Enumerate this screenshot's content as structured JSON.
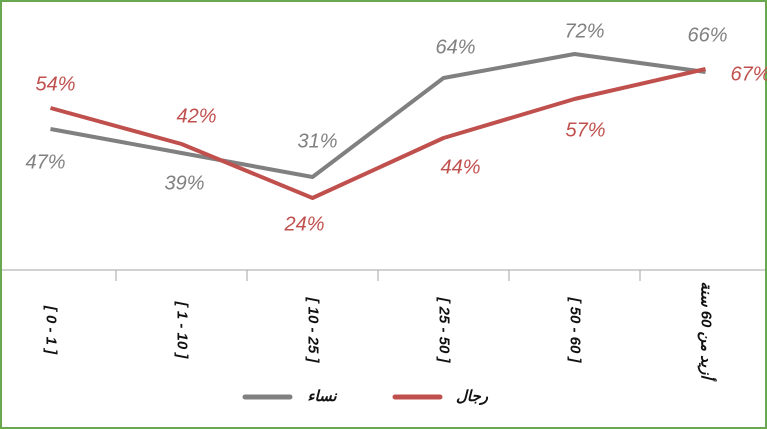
{
  "chart_data": {
    "type": "line",
    "categories": [
      "[ 0 - 1 ]",
      "[ 1 - 10 ]",
      "[ 10 - 25 ]",
      "[ 25 - 50 ]",
      "[ 50 - 60 ]",
      "أزيد من 60 سنة"
    ],
    "series": [
      {
        "name": "نساء",
        "color": "#808080",
        "values": [
          47,
          39,
          31,
          64,
          72,
          66
        ],
        "value_labels": [
          "47%",
          "39%",
          "31%",
          "64%",
          "72%",
          "66%"
        ]
      },
      {
        "name": "رجال",
        "color": "#c0504d",
        "values": [
          54,
          42,
          24,
          44,
          57,
          67
        ],
        "value_labels": [
          "54%",
          "42%",
          "24%",
          "44%",
          "57%",
          "67%"
        ]
      }
    ],
    "ylim": [
      0,
      90
    ]
  }
}
